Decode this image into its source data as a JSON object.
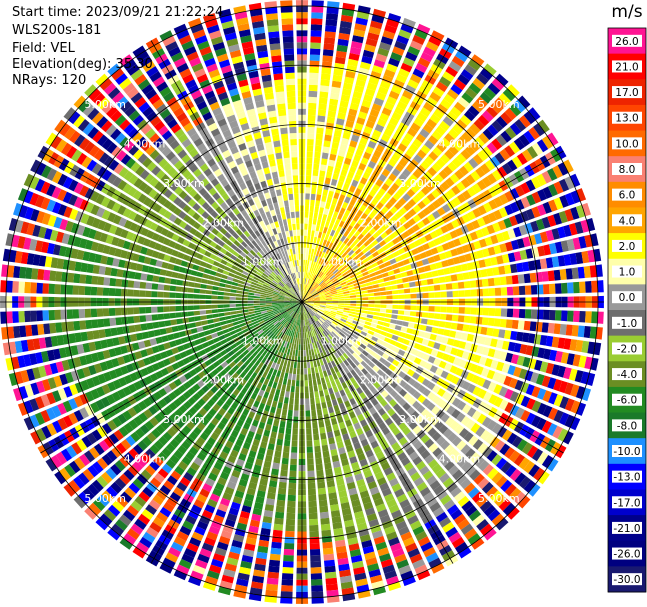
{
  "header": {
    "start_time": "Start time: 2023/09/21 21:22:24",
    "instrument": "WLS200s-181",
    "field": "Field: VEL",
    "elevation": "Elevation(deg): 35.30",
    "nrays": "NRays: 120"
  },
  "chart_data": {
    "type": "heatmap",
    "projection": "polar PPI",
    "field": "VEL",
    "units": "m/s",
    "n_rays": 120,
    "range_ring_labels": [
      "1.00km",
      "2.00km",
      "3.00km",
      "4.00km",
      "5.00km"
    ],
    "range_rings_km": [
      1,
      2,
      3,
      4,
      5
    ],
    "max_range_km": 5.1,
    "colorbar": {
      "title": "m/s",
      "tick_labels": [
        "26.0",
        "21.0",
        "17.0",
        "13.0",
        "10.0",
        "8.0",
        "6.0",
        "4.0",
        "2.0",
        "1.0",
        "0.0",
        "-1.0",
        "-2.0",
        "-4.0",
        "-6.0",
        "-8.0",
        "-10.0",
        "-13.0",
        "-17.0",
        "-21.0",
        "-26.0",
        "-30.0"
      ],
      "colors": [
        "#ff1493",
        "#ff0000",
        "#ee2400",
        "#ff4500",
        "#ff6a00",
        "#fa8072",
        "#ff8c00",
        "#ffa500",
        "#ffff00",
        "#ffffaa",
        "#999999",
        "#6e6e6e",
        "#9acd32",
        "#6b8e23",
        "#228b22",
        "#1a7a2a",
        "#1e90ff",
        "#0000ff",
        "#0000cd",
        "#00008b",
        "#000080",
        "#191970"
      ]
    },
    "velocity_pattern": {
      "approaching_sector": "southwest (negative, green)",
      "receding_sector": "northeast (positive, yellow/orange)",
      "noise_beyond_km": 3.9
    }
  }
}
